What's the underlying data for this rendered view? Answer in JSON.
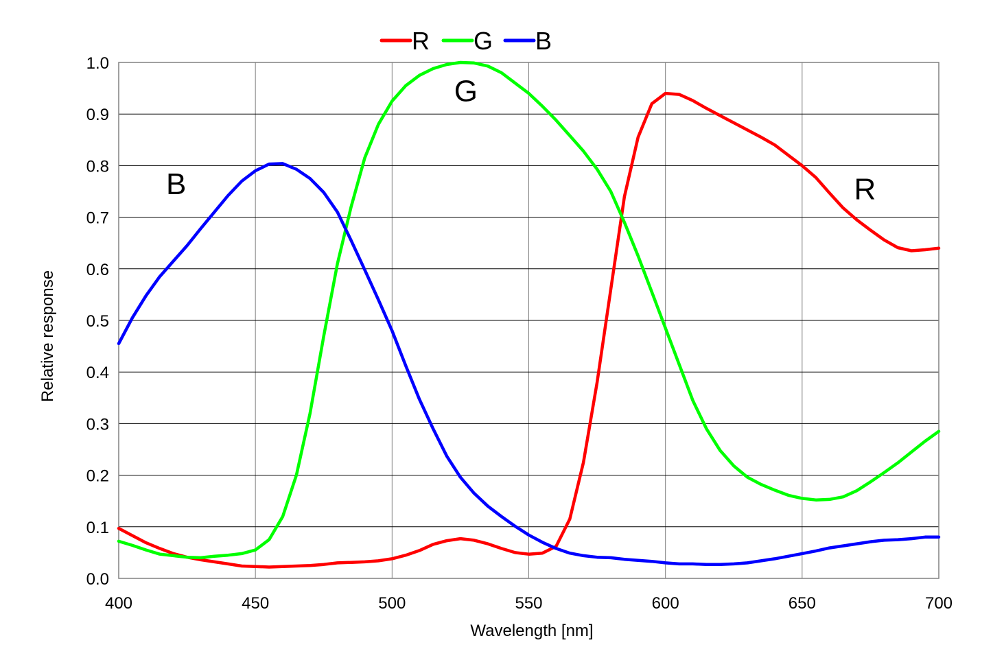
{
  "chart_data": {
    "type": "line",
    "title": "",
    "xlabel": "Wavelength [nm]",
    "ylabel": "Relative response",
    "xlim": [
      400,
      700
    ],
    "ylim": [
      0.0,
      1.0
    ],
    "xticks": [
      400,
      450,
      500,
      550,
      600,
      650,
      700
    ],
    "xtick_labels": [
      "400",
      "450",
      "500",
      "550",
      "600",
      "650",
      "700"
    ],
    "yticks": [
      0.0,
      0.1,
      0.2,
      0.3,
      0.4,
      0.5,
      0.6,
      0.7,
      0.8,
      0.9,
      1.0
    ],
    "ytick_labels": [
      "0.0",
      "0.1",
      "0.2",
      "0.3",
      "0.4",
      "0.5",
      "0.6",
      "0.7",
      "0.8",
      "0.9",
      "1.0"
    ],
    "grid": true,
    "legend_position": "top-center",
    "series": [
      {
        "name": "R",
        "color": "#ff0000",
        "x": [
          400,
          405,
          410,
          415,
          420,
          425,
          430,
          435,
          440,
          445,
          450,
          455,
          460,
          465,
          470,
          475,
          480,
          485,
          490,
          495,
          500,
          505,
          510,
          515,
          520,
          525,
          530,
          535,
          540,
          545,
          550,
          555,
          560,
          565,
          570,
          575,
          580,
          585,
          590,
          595,
          600,
          605,
          610,
          615,
          620,
          625,
          630,
          635,
          640,
          645,
          650,
          655,
          660,
          665,
          670,
          675,
          680,
          685,
          690,
          695,
          700
        ],
        "values": [
          0.097,
          0.083,
          0.069,
          0.058,
          0.048,
          0.041,
          0.036,
          0.032,
          0.028,
          0.024,
          0.023,
          0.022,
          0.023,
          0.024,
          0.025,
          0.027,
          0.03,
          0.031,
          0.032,
          0.034,
          0.038,
          0.045,
          0.054,
          0.066,
          0.073,
          0.077,
          0.074,
          0.067,
          0.058,
          0.05,
          0.047,
          0.049,
          0.062,
          0.115,
          0.225,
          0.38,
          0.56,
          0.74,
          0.855,
          0.92,
          0.94,
          0.938,
          0.926,
          0.911,
          0.897,
          0.883,
          0.869,
          0.855,
          0.84,
          0.82,
          0.8,
          0.777,
          0.747,
          0.718,
          0.695,
          0.675,
          0.656,
          0.641,
          0.635,
          0.637,
          0.64
        ]
      },
      {
        "name": "G",
        "color": "#00ff00",
        "x": [
          400,
          405,
          410,
          415,
          420,
          425,
          430,
          435,
          440,
          445,
          450,
          455,
          460,
          465,
          470,
          475,
          480,
          485,
          490,
          495,
          500,
          505,
          510,
          515,
          520,
          525,
          530,
          535,
          540,
          545,
          550,
          555,
          560,
          565,
          570,
          575,
          580,
          585,
          590,
          595,
          600,
          605,
          610,
          615,
          620,
          625,
          630,
          635,
          640,
          645,
          650,
          655,
          660,
          665,
          670,
          675,
          680,
          685,
          690,
          695,
          700
        ],
        "values": [
          0.072,
          0.064,
          0.055,
          0.047,
          0.044,
          0.041,
          0.04,
          0.043,
          0.045,
          0.048,
          0.055,
          0.075,
          0.12,
          0.2,
          0.32,
          0.47,
          0.61,
          0.72,
          0.815,
          0.88,
          0.925,
          0.955,
          0.975,
          0.988,
          0.996,
          1.0,
          0.999,
          0.993,
          0.98,
          0.96,
          0.94,
          0.915,
          0.888,
          0.858,
          0.828,
          0.793,
          0.75,
          0.69,
          0.625,
          0.555,
          0.485,
          0.415,
          0.345,
          0.29,
          0.248,
          0.218,
          0.196,
          0.182,
          0.171,
          0.161,
          0.155,
          0.152,
          0.153,
          0.158,
          0.17,
          0.187,
          0.205,
          0.224,
          0.245,
          0.266,
          0.285
        ]
      },
      {
        "name": "B",
        "color": "#0000ff",
        "x": [
          400,
          405,
          410,
          415,
          420,
          425,
          430,
          435,
          440,
          445,
          450,
          455,
          460,
          465,
          470,
          475,
          480,
          485,
          490,
          495,
          500,
          505,
          510,
          515,
          520,
          525,
          530,
          535,
          540,
          545,
          550,
          555,
          560,
          565,
          570,
          575,
          580,
          585,
          590,
          595,
          600,
          605,
          610,
          615,
          620,
          625,
          630,
          635,
          640,
          645,
          650,
          655,
          660,
          665,
          670,
          675,
          680,
          685,
          690,
          695,
          700
        ],
        "values": [
          0.455,
          0.505,
          0.548,
          0.585,
          0.615,
          0.645,
          0.678,
          0.71,
          0.742,
          0.77,
          0.79,
          0.803,
          0.804,
          0.793,
          0.775,
          0.748,
          0.71,
          0.655,
          0.598,
          0.54,
          0.48,
          0.412,
          0.347,
          0.29,
          0.237,
          0.196,
          0.165,
          0.14,
          0.12,
          0.101,
          0.084,
          0.07,
          0.058,
          0.049,
          0.044,
          0.041,
          0.04,
          0.037,
          0.035,
          0.033,
          0.03,
          0.028,
          0.028,
          0.027,
          0.027,
          0.028,
          0.03,
          0.034,
          0.038,
          0.043,
          0.048,
          0.053,
          0.059,
          0.063,
          0.067,
          0.071,
          0.074,
          0.075,
          0.077,
          0.08,
          0.08
        ]
      }
    ],
    "annotations": [
      {
        "text": "B",
        "x": 421,
        "y": 0.745
      },
      {
        "text": "G",
        "x": 527,
        "y": 0.925
      },
      {
        "text": "R",
        "x": 673,
        "y": 0.735
      }
    ]
  }
}
